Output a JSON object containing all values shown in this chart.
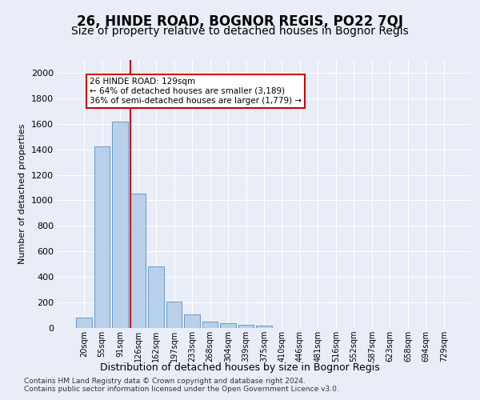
{
  "title": "26, HINDE ROAD, BOGNOR REGIS, PO22 7QJ",
  "subtitle": "Size of property relative to detached houses in Bognor Regis",
  "xlabel": "Distribution of detached houses by size in Bognor Regis",
  "ylabel": "Number of detached properties",
  "categories": [
    "20sqm",
    "55sqm",
    "91sqm",
    "126sqm",
    "162sqm",
    "197sqm",
    "233sqm",
    "268sqm",
    "304sqm",
    "339sqm",
    "375sqm",
    "410sqm",
    "446sqm",
    "481sqm",
    "516sqm",
    "552sqm",
    "587sqm",
    "623sqm",
    "658sqm",
    "694sqm",
    "729sqm"
  ],
  "values": [
    80,
    1420,
    1620,
    1050,
    480,
    205,
    105,
    48,
    35,
    25,
    20,
    0,
    0,
    0,
    0,
    0,
    0,
    0,
    0,
    0,
    0
  ],
  "bar_color": "#b8d0e8",
  "bar_edge_color": "#6699cc",
  "annotation_text": "26 HINDE ROAD: 129sqm\n← 64% of detached houses are smaller (3,189)\n36% of semi-detached houses are larger (1,779) →",
  "annotation_box_color": "#ffffff",
  "annotation_border_color": "#cc0000",
  "ylim": [
    0,
    2100
  ],
  "yticks": [
    0,
    200,
    400,
    600,
    800,
    1000,
    1200,
    1400,
    1600,
    1800,
    2000
  ],
  "footer1": "Contains HM Land Registry data © Crown copyright and database right 2024.",
  "footer2": "Contains public sector information licensed under the Open Government Licence v3.0.",
  "title_fontsize": 12,
  "subtitle_fontsize": 10,
  "background_color": "#e8edf8",
  "plot_background": "#e8edf8"
}
